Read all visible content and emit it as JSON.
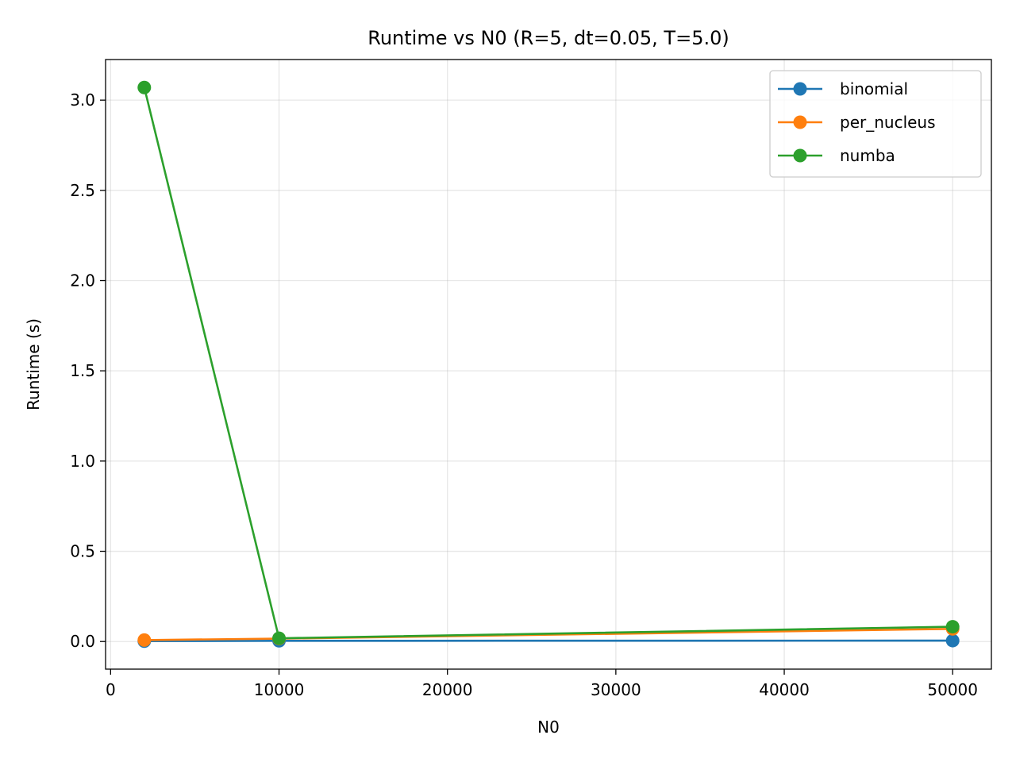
{
  "chart_data": {
    "type": "line",
    "title": "Runtime vs N0 (R=5, dt=0.05, T=5.0)",
    "xlabel": "N0",
    "ylabel": "Runtime (s)",
    "x": [
      2000,
      10000,
      50000
    ],
    "xlim": [
      -300,
      52300
    ],
    "ylim": [
      -0.153,
      3.225
    ],
    "xticks": [
      0,
      10000,
      20000,
      30000,
      40000,
      50000
    ],
    "xtick_labels": [
      "0",
      "10000",
      "20000",
      "30000",
      "40000",
      "50000"
    ],
    "yticks": [
      0.0,
      0.5,
      1.0,
      1.5,
      2.0,
      2.5,
      3.0
    ],
    "ytick_labels": [
      "0.0",
      "0.5",
      "1.0",
      "1.5",
      "2.0",
      "2.5",
      "3.0"
    ],
    "grid": true,
    "legend_position": "top-right",
    "series": [
      {
        "name": "binomial",
        "color": "#1f77b4",
        "values": [
          0.002,
          0.004,
          0.005
        ]
      },
      {
        "name": "per_nucleus",
        "color": "#ff7f0e",
        "values": [
          0.008,
          0.016,
          0.07
        ]
      },
      {
        "name": "numba",
        "color": "#2ca02c",
        "values": [
          3.07,
          0.018,
          0.082
        ]
      }
    ]
  }
}
